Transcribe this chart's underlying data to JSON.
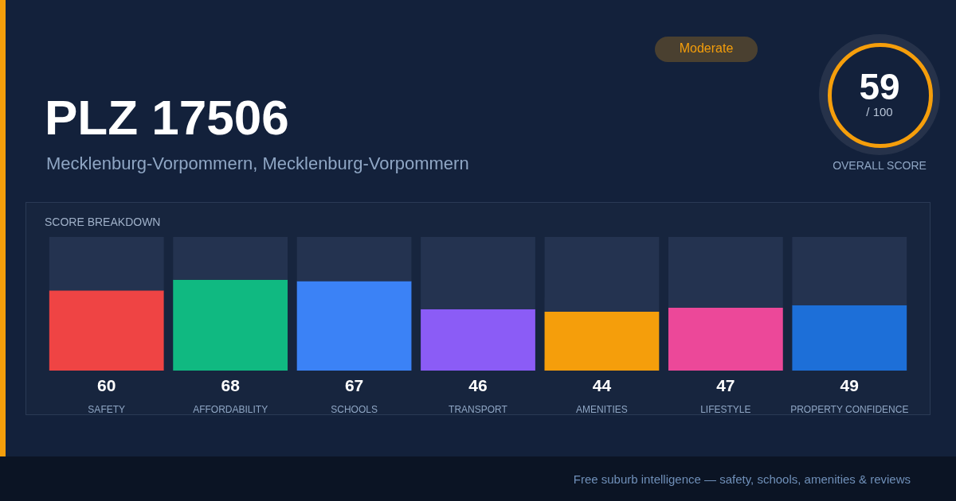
{
  "chart_data": {
    "type": "bar",
    "title": "PLZ 17506",
    "subtitle": "Mecklenburg-Vorpommern, Mecklenburg-Vorpommern",
    "categories": [
      "SAFETY",
      "AFFORDABILITY",
      "SCHOOLS",
      "TRANSPORT",
      "AMENITIES",
      "LIFESTYLE",
      "PROPERTY CONFIDENCE"
    ],
    "stacked": true,
    "series": [
      {
        "colors": [
          "#ef4444",
          "#10b981",
          "#3b82f6",
          "#8b5cf6",
          "#f59e0b",
          "#ec4899",
          "#1d6fd8"
        ],
        "values": [
          60,
          68,
          67,
          46,
          44,
          47,
          49
        ],
        "value_labels": [
          "60",
          "68",
          "67",
          "46",
          "44",
          "47",
          "49"
        ]
      },
      {
        "color": "#243350",
        "values": [
          40,
          32,
          33,
          54,
          56,
          53,
          51
        ]
      }
    ],
    "ylim": [
      0,
      100
    ],
    "annotations": [
      "Moderate",
      "59",
      "/ 100",
      "OVERALL SCORE",
      "SCORE BREAKDOWN",
      "Free suburb intelligence — safety, schools, amenities & reviews"
    ]
  }
}
